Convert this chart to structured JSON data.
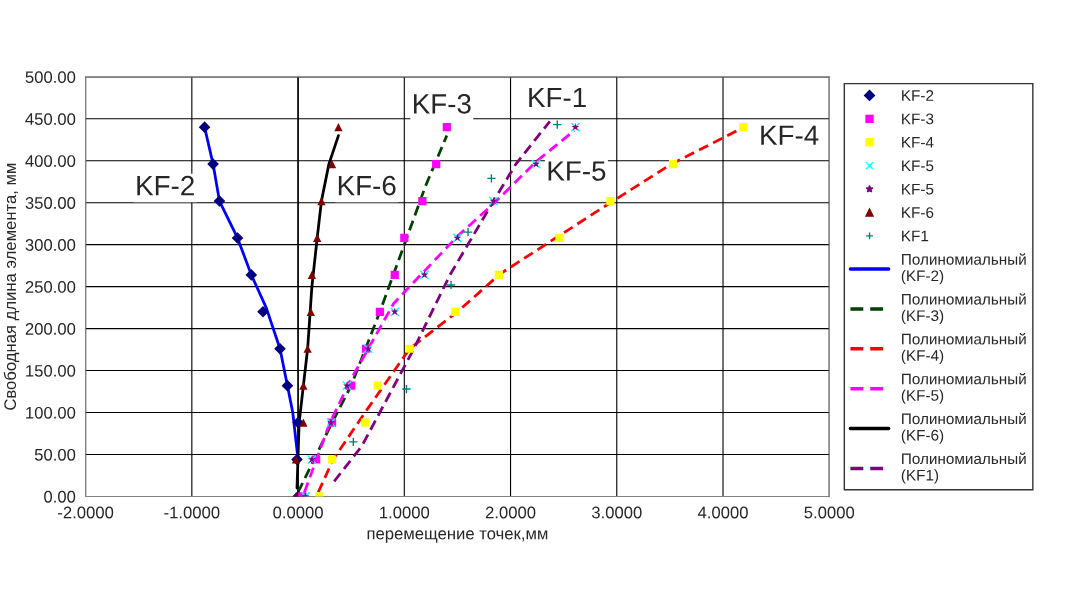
{
  "chart_data": {
    "type": "scatter",
    "xlabel": "перемещение точек,мм",
    "ylabel": "Свободная длина элемента, мм",
    "xlim": [
      -2,
      5
    ],
    "ylim": [
      0,
      500
    ],
    "xticks": [
      {
        "value": -2,
        "label": "-2.0000"
      },
      {
        "value": -1,
        "label": "-1.0000"
      },
      {
        "value": 0,
        "label": "0.0000"
      },
      {
        "value": 1,
        "label": "1.0000"
      },
      {
        "value": 2,
        "label": "2.0000"
      },
      {
        "value": 3,
        "label": "3.0000"
      },
      {
        "value": 4,
        "label": "4.0000"
      },
      {
        "value": 5,
        "label": "5.0000"
      }
    ],
    "yticks": [
      {
        "value": 0,
        "label": "0.00"
      },
      {
        "value": 50,
        "label": "50.00"
      },
      {
        "value": 100,
        "label": "100.00"
      },
      {
        "value": 150,
        "label": "150.00"
      },
      {
        "value": 200,
        "label": "200.00"
      },
      {
        "value": 250,
        "label": "250.00"
      },
      {
        "value": 300,
        "label": "300.00"
      },
      {
        "value": 350,
        "label": "350.00"
      },
      {
        "value": 400,
        "label": "400.00"
      },
      {
        "value": 450,
        "label": "450.00"
      },
      {
        "value": 500,
        "label": "500.00"
      }
    ],
    "grid": true,
    "legend": "right",
    "series": [
      {
        "name": "KF-2",
        "marker": "diamond",
        "color": "#000080",
        "x": [
          -0.88,
          -0.8,
          -0.74,
          -0.57,
          -0.44,
          -0.33,
          -0.17,
          -0.1,
          0.0,
          -0.01,
          0.0
        ],
        "values": [
          440,
          396,
          352,
          308,
          264,
          220,
          176,
          132,
          88,
          44,
          0
        ]
      },
      {
        "name": "KF-3",
        "marker": "square",
        "color": "#ff00ff",
        "x": [
          1.4,
          1.3,
          1.17,
          1.0,
          0.91,
          0.77,
          0.64,
          0.5,
          0.32,
          0.17,
          0.04
        ],
        "values": [
          440,
          396,
          352,
          308,
          264,
          220,
          176,
          132,
          88,
          44,
          0
        ]
      },
      {
        "name": "KF-4",
        "marker": "square",
        "color": "#ffff00",
        "x": [
          4.19,
          3.53,
          2.94,
          2.46,
          1.89,
          1.48,
          1.05,
          0.75,
          0.63,
          0.32,
          0.2
        ],
        "values": [
          440,
          396,
          352,
          308,
          264,
          220,
          176,
          132,
          88,
          44,
          0
        ]
      },
      {
        "name": "KF-5",
        "marker": "x",
        "color": "#00ffff",
        "x": [
          2.61,
          2.24,
          1.84,
          1.5,
          1.19,
          0.91,
          0.66,
          0.46,
          0.31,
          0.13,
          0.07
        ],
        "values": [
          440,
          396,
          352,
          308,
          264,
          220,
          176,
          132,
          88,
          44,
          0
        ]
      },
      {
        "name": "KF-5",
        "marker": "star",
        "color": "#800080",
        "x": [
          2.61,
          2.24,
          1.84,
          1.5,
          1.19,
          0.91,
          0.66,
          0.46,
          0.31,
          0.13,
          0.07
        ],
        "values": [
          440,
          396,
          352,
          308,
          264,
          220,
          176,
          132,
          88,
          44,
          0
        ]
      },
      {
        "name": "KF-6",
        "marker": "triangle",
        "color": "#800000",
        "x": [
          0.38,
          0.32,
          0.22,
          0.18,
          0.13,
          0.12,
          0.09,
          0.05,
          0.05,
          -0.02,
          -0.02
        ],
        "values": [
          440,
          396,
          352,
          308,
          264,
          220,
          176,
          132,
          88,
          44,
          0
        ]
      },
      {
        "name": "KF1",
        "marker": "cross",
        "color": "#008080",
        "x": [
          2.44,
          1.82,
          1.6,
          1.44,
          1.02,
          0.52
        ],
        "values": [
          443,
          379,
          315,
          252,
          128,
          65
        ]
      },
      {
        "name": "Полиномиальный (KF-2)",
        "type": "line",
        "line_style": "solid",
        "color": "#0000ff",
        "x": [
          0.0,
          -0.05,
          -0.1,
          -0.17,
          -0.3,
          -0.44,
          -0.57,
          -0.74,
          -0.8,
          -0.88
        ],
        "values": [
          44,
          100,
          132,
          176,
          225,
          264,
          308,
          352,
          396,
          440
        ]
      },
      {
        "name": "Полиномиальный (KF-3)",
        "type": "line",
        "line_style": "dashed",
        "color": "#004000",
        "x": [
          0.0,
          0.32,
          0.5,
          0.77,
          1.0,
          1.2,
          1.4
        ],
        "values": [
          5,
          88,
          132,
          220,
          300,
          370,
          430
        ]
      },
      {
        "name": "Полиномиальный (KF-4)",
        "type": "line",
        "line_style": "dashed",
        "color": "#ff0000",
        "x": [
          0.19,
          0.33,
          0.63,
          1.05,
          1.5,
          1.9,
          2.45,
          2.94,
          3.5,
          4.15
        ],
        "values": [
          5,
          44,
          100,
          176,
          220,
          265,
          310,
          350,
          395,
          437
        ]
      },
      {
        "name": "Полиномиальный (KF-5)",
        "type": "line",
        "line_style": "dashed",
        "color": "#ff00ff",
        "x": [
          0.06,
          0.3,
          0.5,
          0.9,
          1.2,
          1.5,
          1.85,
          2.25,
          2.6
        ],
        "values": [
          5,
          88,
          140,
          230,
          270,
          310,
          350,
          400,
          436
        ]
      },
      {
        "name": "Полиномиальный (KF-6)",
        "type": "line",
        "line_style": "solid",
        "color": "#000000",
        "x": [
          -0.01,
          0.01,
          0.05,
          0.09,
          0.13,
          0.18,
          0.22,
          0.29,
          0.38
        ],
        "values": [
          10,
          88,
          132,
          176,
          250,
          308,
          352,
          396,
          430
        ]
      },
      {
        "name": "Полиномиальный (KF1)",
        "type": "line",
        "line_style": "dashed",
        "color": "#800080",
        "x": [
          0.34,
          0.6,
          1.09,
          1.43,
          1.84,
          2.05,
          2.37
        ],
        "values": [
          18,
          60,
          176,
          264,
          352,
          396,
          447
        ]
      }
    ],
    "annotations": [
      "KF-2",
      "KF-6",
      "KF-3",
      "KF-1",
      "KF-5",
      "KF-4"
    ]
  }
}
